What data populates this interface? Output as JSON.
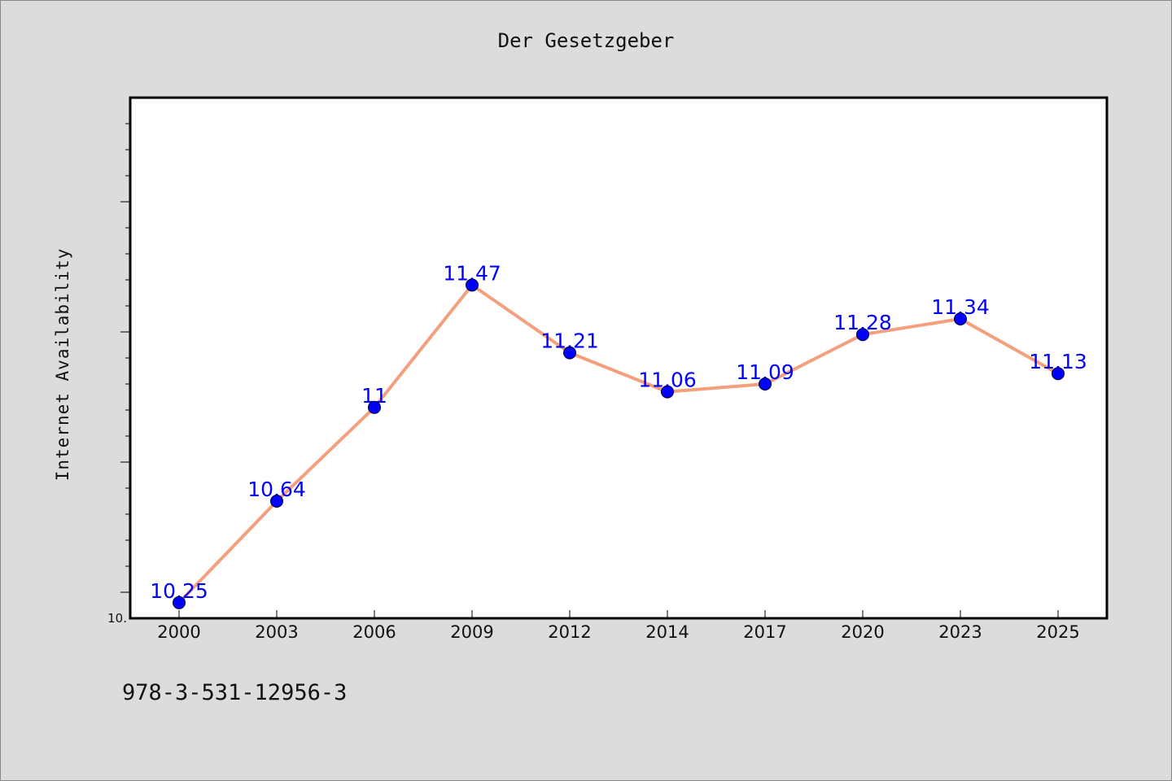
{
  "chart_data": {
    "type": "line",
    "title": "Der Gesetzgeber",
    "xlabel": "",
    "ylabel": "Internet Availability",
    "categories": [
      "2000",
      "2003",
      "2006",
      "2009",
      "2012",
      "2014",
      "2017",
      "2020",
      "2023",
      "2025"
    ],
    "series": [
      {
        "values": [
          10.25,
          10.64,
          11.0,
          11.47,
          11.21,
          11.06,
          11.09,
          11.28,
          11.34,
          11.13
        ],
        "data_labels": [
          "10.25",
          "10.64",
          "11",
          "11.47",
          "11.21",
          "11.06",
          "11.09",
          "11.28",
          "11.34",
          "11.13"
        ]
      }
    ],
    "ylim": [
      10.19,
      12.19
    ],
    "y_tick_labels": [
      {
        "value": 10.19,
        "label": "10."
      }
    ],
    "y_major_ticks": [
      10.3,
      10.8,
      11.3,
      11.8
    ],
    "y_minor_step": 0.1,
    "grid": false,
    "line_color": "#f4a07e",
    "marker_color": "#0000ff",
    "label_color": "#0000ff"
  },
  "footer": {
    "code": "978-3-531-12956-3"
  }
}
